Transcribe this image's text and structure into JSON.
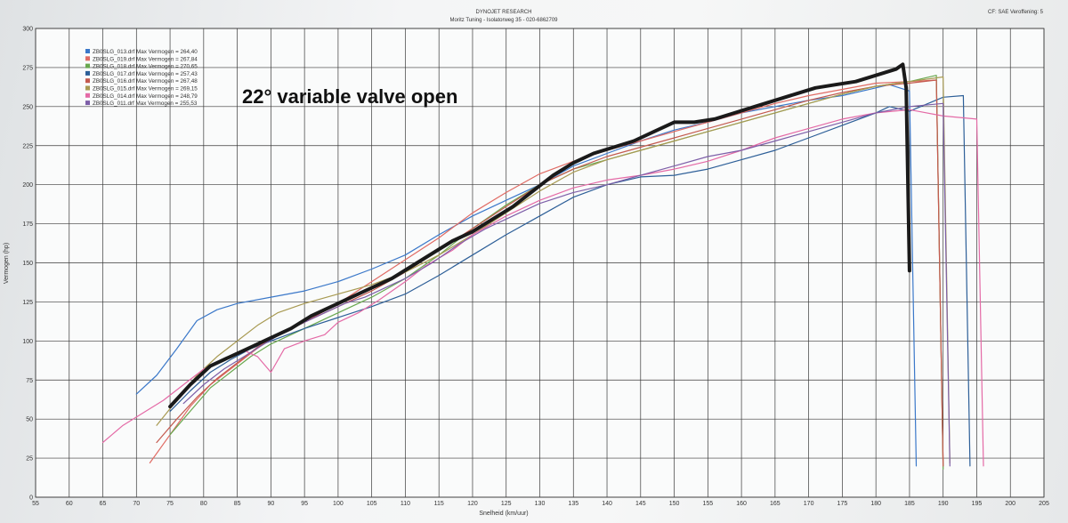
{
  "header": {
    "title": "DYNOJET RESEARCH",
    "subtitle": "Moritz Tuning - Isolatorweg 35 - 020-6862709",
    "corner": "CF: SAE  Veroffening: 5"
  },
  "annotation": "22° variable valve open",
  "chart_data": {
    "type": "line",
    "xlabel": "Snelheid (km/uur)",
    "ylabel": "Vermogen (hp)",
    "xlim": [
      55,
      205
    ],
    "ylim": [
      0,
      300
    ],
    "x_ticks": [
      "55",
      "60",
      "65",
      "70",
      "75",
      "80",
      "85",
      "90",
      "95",
      "100",
      "105",
      "110",
      "115",
      "120",
      "125",
      "130",
      "135",
      "140",
      "145",
      "150",
      "155",
      "160",
      "165",
      "170",
      "175",
      "180",
      "185",
      "190",
      "195",
      "200",
      "205"
    ],
    "y_ticks": [
      "0",
      "25",
      "50",
      "75",
      "100",
      "125",
      "150",
      "175",
      "200",
      "225",
      "250",
      "275",
      "300"
    ],
    "grid": true,
    "legend_position": "top-left",
    "series": [
      {
        "name": "ZB0SLG_013.drf Max Vermogen = 264,40",
        "color": "#3b78c9",
        "points": [
          [
            70,
            66
          ],
          [
            73,
            78
          ],
          [
            76,
            95
          ],
          [
            79,
            113
          ],
          [
            82,
            120
          ],
          [
            85,
            124
          ],
          [
            90,
            128
          ],
          [
            95,
            132
          ],
          [
            100,
            138
          ],
          [
            105,
            146
          ],
          [
            110,
            155
          ],
          [
            115,
            168
          ],
          [
            120,
            180
          ],
          [
            125,
            190
          ],
          [
            130,
            200
          ],
          [
            135,
            212
          ],
          [
            140,
            220
          ],
          [
            145,
            228
          ],
          [
            150,
            235
          ],
          [
            155,
            240
          ],
          [
            160,
            246
          ],
          [
            165,
            250
          ],
          [
            170,
            254
          ],
          [
            175,
            257
          ],
          [
            180,
            262
          ],
          [
            182,
            264
          ],
          [
            185,
            260
          ],
          [
            186,
            20
          ]
        ]
      },
      {
        "name": "ZB0SLG_019.drf Max Vermogen = 267,84",
        "color": "#e06b64",
        "points": [
          [
            72,
            22
          ],
          [
            75,
            40
          ],
          [
            78,
            58
          ],
          [
            81,
            72
          ],
          [
            84,
            82
          ],
          [
            87,
            92
          ],
          [
            90,
            102
          ],
          [
            95,
            112
          ],
          [
            100,
            124
          ],
          [
            105,
            138
          ],
          [
            110,
            152
          ],
          [
            115,
            166
          ],
          [
            120,
            182
          ],
          [
            125,
            195
          ],
          [
            130,
            207
          ],
          [
            135,
            215
          ],
          [
            140,
            222
          ],
          [
            145,
            228
          ],
          [
            150,
            234
          ],
          [
            155,
            240
          ],
          [
            160,
            246
          ],
          [
            165,
            252
          ],
          [
            170,
            257
          ],
          [
            175,
            261
          ],
          [
            180,
            265
          ],
          [
            185,
            266
          ],
          [
            189,
            267
          ],
          [
            190,
            20
          ]
        ]
      },
      {
        "name": "ZB0SLG_018.drf Max Vermogen = 270,65",
        "color": "#69a84f",
        "points": [
          [
            75,
            40
          ],
          [
            78,
            55
          ],
          [
            81,
            70
          ],
          [
            84,
            80
          ],
          [
            87,
            90
          ],
          [
            90,
            98
          ],
          [
            95,
            108
          ],
          [
            100,
            118
          ],
          [
            105,
            128
          ],
          [
            110,
            140
          ],
          [
            115,
            155
          ],
          [
            120,
            172
          ],
          [
            125,
            187
          ],
          [
            130,
            200
          ],
          [
            135,
            210
          ],
          [
            140,
            216
          ],
          [
            145,
            222
          ],
          [
            150,
            228
          ],
          [
            155,
            234
          ],
          [
            160,
            240
          ],
          [
            165,
            246
          ],
          [
            170,
            252
          ],
          [
            175,
            258
          ],
          [
            180,
            263
          ],
          [
            185,
            266
          ],
          [
            189,
            270
          ],
          [
            190,
            18
          ]
        ]
      },
      {
        "name": "ZB0SLG_017.drf Max Vermogen = 257,43",
        "color": "#2d5f98",
        "points": [
          [
            75,
            55
          ],
          [
            78,
            68
          ],
          [
            81,
            80
          ],
          [
            84,
            88
          ],
          [
            87,
            95
          ],
          [
            90,
            100
          ],
          [
            95,
            108
          ],
          [
            100,
            115
          ],
          [
            105,
            122
          ],
          [
            110,
            130
          ],
          [
            115,
            142
          ],
          [
            120,
            155
          ],
          [
            125,
            168
          ],
          [
            130,
            180
          ],
          [
            135,
            192
          ],
          [
            140,
            200
          ],
          [
            145,
            205
          ],
          [
            150,
            206
          ],
          [
            155,
            210
          ],
          [
            160,
            216
          ],
          [
            165,
            222
          ],
          [
            170,
            230
          ],
          [
            175,
            238
          ],
          [
            180,
            246
          ],
          [
            182,
            250
          ],
          [
            185,
            247
          ],
          [
            190,
            256
          ],
          [
            193,
            257
          ],
          [
            194,
            20
          ]
        ]
      },
      {
        "name": "ZB0SLG_016.drf Max Vermogen = 267,48",
        "color": "#c45a4f",
        "points": [
          [
            73,
            35
          ],
          [
            76,
            50
          ],
          [
            79,
            64
          ],
          [
            82,
            76
          ],
          [
            85,
            86
          ],
          [
            88,
            96
          ],
          [
            91,
            104
          ],
          [
            95,
            112
          ],
          [
            100,
            122
          ],
          [
            105,
            132
          ],
          [
            110,
            144
          ],
          [
            115,
            158
          ],
          [
            120,
            172
          ],
          [
            125,
            186
          ],
          [
            130,
            200
          ],
          [
            135,
            210
          ],
          [
            140,
            218
          ],
          [
            145,
            224
          ],
          [
            150,
            230
          ],
          [
            155,
            236
          ],
          [
            160,
            242
          ],
          [
            165,
            248
          ],
          [
            170,
            254
          ],
          [
            175,
            259
          ],
          [
            180,
            263
          ],
          [
            185,
            265
          ],
          [
            189,
            267
          ],
          [
            190,
            20
          ]
        ]
      },
      {
        "name": "ZB0SLG_015.drf Max Vermogen = 269,15",
        "color": "#a89a52",
        "points": [
          [
            73,
            46
          ],
          [
            76,
            62
          ],
          [
            79,
            78
          ],
          [
            82,
            90
          ],
          [
            85,
            100
          ],
          [
            88,
            110
          ],
          [
            91,
            118
          ],
          [
            95,
            124
          ],
          [
            100,
            130
          ],
          [
            105,
            136
          ],
          [
            110,
            144
          ],
          [
            115,
            155
          ],
          [
            120,
            168
          ],
          [
            125,
            182
          ],
          [
            130,
            196
          ],
          [
            135,
            208
          ],
          [
            140,
            216
          ],
          [
            145,
            222
          ],
          [
            150,
            228
          ],
          [
            155,
            234
          ],
          [
            160,
            240
          ],
          [
            165,
            246
          ],
          [
            170,
            252
          ],
          [
            175,
            258
          ],
          [
            180,
            263
          ],
          [
            185,
            266
          ],
          [
            190,
            269
          ],
          [
            191,
            22
          ]
        ]
      },
      {
        "name": "ZB0SLG_014.drf Max Vermogen = 248,79",
        "color": "#e46aa6",
        "points": [
          [
            65,
            35
          ],
          [
            68,
            46
          ],
          [
            71,
            54
          ],
          [
            74,
            62
          ],
          [
            77,
            72
          ],
          [
            80,
            82
          ],
          [
            83,
            88
          ],
          [
            86,
            94
          ],
          [
            88,
            90
          ],
          [
            90,
            80
          ],
          [
            92,
            95
          ],
          [
            95,
            100
          ],
          [
            98,
            104
          ],
          [
            100,
            112
          ],
          [
            103,
            118
          ],
          [
            106,
            126
          ],
          [
            110,
            138
          ],
          [
            113,
            148
          ],
          [
            117,
            158
          ],
          [
            120,
            168
          ],
          [
            125,
            180
          ],
          [
            130,
            190
          ],
          [
            135,
            198
          ],
          [
            140,
            203
          ],
          [
            145,
            206
          ],
          [
            150,
            210
          ],
          [
            155,
            215
          ],
          [
            160,
            222
          ],
          [
            165,
            230
          ],
          [
            170,
            236
          ],
          [
            175,
            242
          ],
          [
            180,
            246
          ],
          [
            185,
            248
          ],
          [
            190,
            244
          ],
          [
            195,
            242
          ],
          [
            196,
            20
          ]
        ]
      },
      {
        "name": "ZB0SLG_011.drf Max Vermogen = 255,53",
        "color": "#7d5fa8",
        "points": [
          [
            77,
            60
          ],
          [
            80,
            72
          ],
          [
            83,
            82
          ],
          [
            86,
            90
          ],
          [
            89,
            98
          ],
          [
            92,
            106
          ],
          [
            95,
            112
          ],
          [
            98,
            118
          ],
          [
            101,
            124
          ],
          [
            104,
            128
          ],
          [
            107,
            134
          ],
          [
            110,
            140
          ],
          [
            114,
            150
          ],
          [
            118,
            162
          ],
          [
            122,
            172
          ],
          [
            126,
            180
          ],
          [
            130,
            188
          ],
          [
            135,
            195
          ],
          [
            140,
            200
          ],
          [
            145,
            206
          ],
          [
            150,
            212
          ],
          [
            155,
            218
          ],
          [
            160,
            222
          ],
          [
            165,
            228
          ],
          [
            170,
            234
          ],
          [
            175,
            240
          ],
          [
            180,
            246
          ],
          [
            185,
            250
          ],
          [
            190,
            252
          ],
          [
            191,
            20
          ]
        ]
      },
      {
        "name": "",
        "color": "#1a1a1a",
        "points": [
          [
            75,
            58
          ],
          [
            78,
            72
          ],
          [
            81,
            84
          ],
          [
            84,
            90
          ],
          [
            87,
            96
          ],
          [
            90,
            102
          ],
          [
            93,
            108
          ],
          [
            96,
            116
          ],
          [
            99,
            122
          ],
          [
            102,
            128
          ],
          [
            105,
            134
          ],
          [
            108,
            140
          ],
          [
            111,
            148
          ],
          [
            114,
            156
          ],
          [
            117,
            164
          ],
          [
            120,
            170
          ],
          [
            123,
            178
          ],
          [
            126,
            186
          ],
          [
            129,
            196
          ],
          [
            132,
            206
          ],
          [
            135,
            214
          ],
          [
            138,
            220
          ],
          [
            141,
            224
          ],
          [
            144,
            228
          ],
          [
            147,
            234
          ],
          [
            150,
            240
          ],
          [
            153,
            240
          ],
          [
            156,
            242
          ],
          [
            159,
            246
          ],
          [
            162,
            250
          ],
          [
            165,
            254
          ],
          [
            168,
            258
          ],
          [
            171,
            262
          ],
          [
            174,
            264
          ],
          [
            177,
            266
          ],
          [
            180,
            270
          ],
          [
            183,
            274
          ],
          [
            184,
            277
          ],
          [
            184.5,
            262
          ],
          [
            185,
            145
          ]
        ]
      }
    ]
  }
}
